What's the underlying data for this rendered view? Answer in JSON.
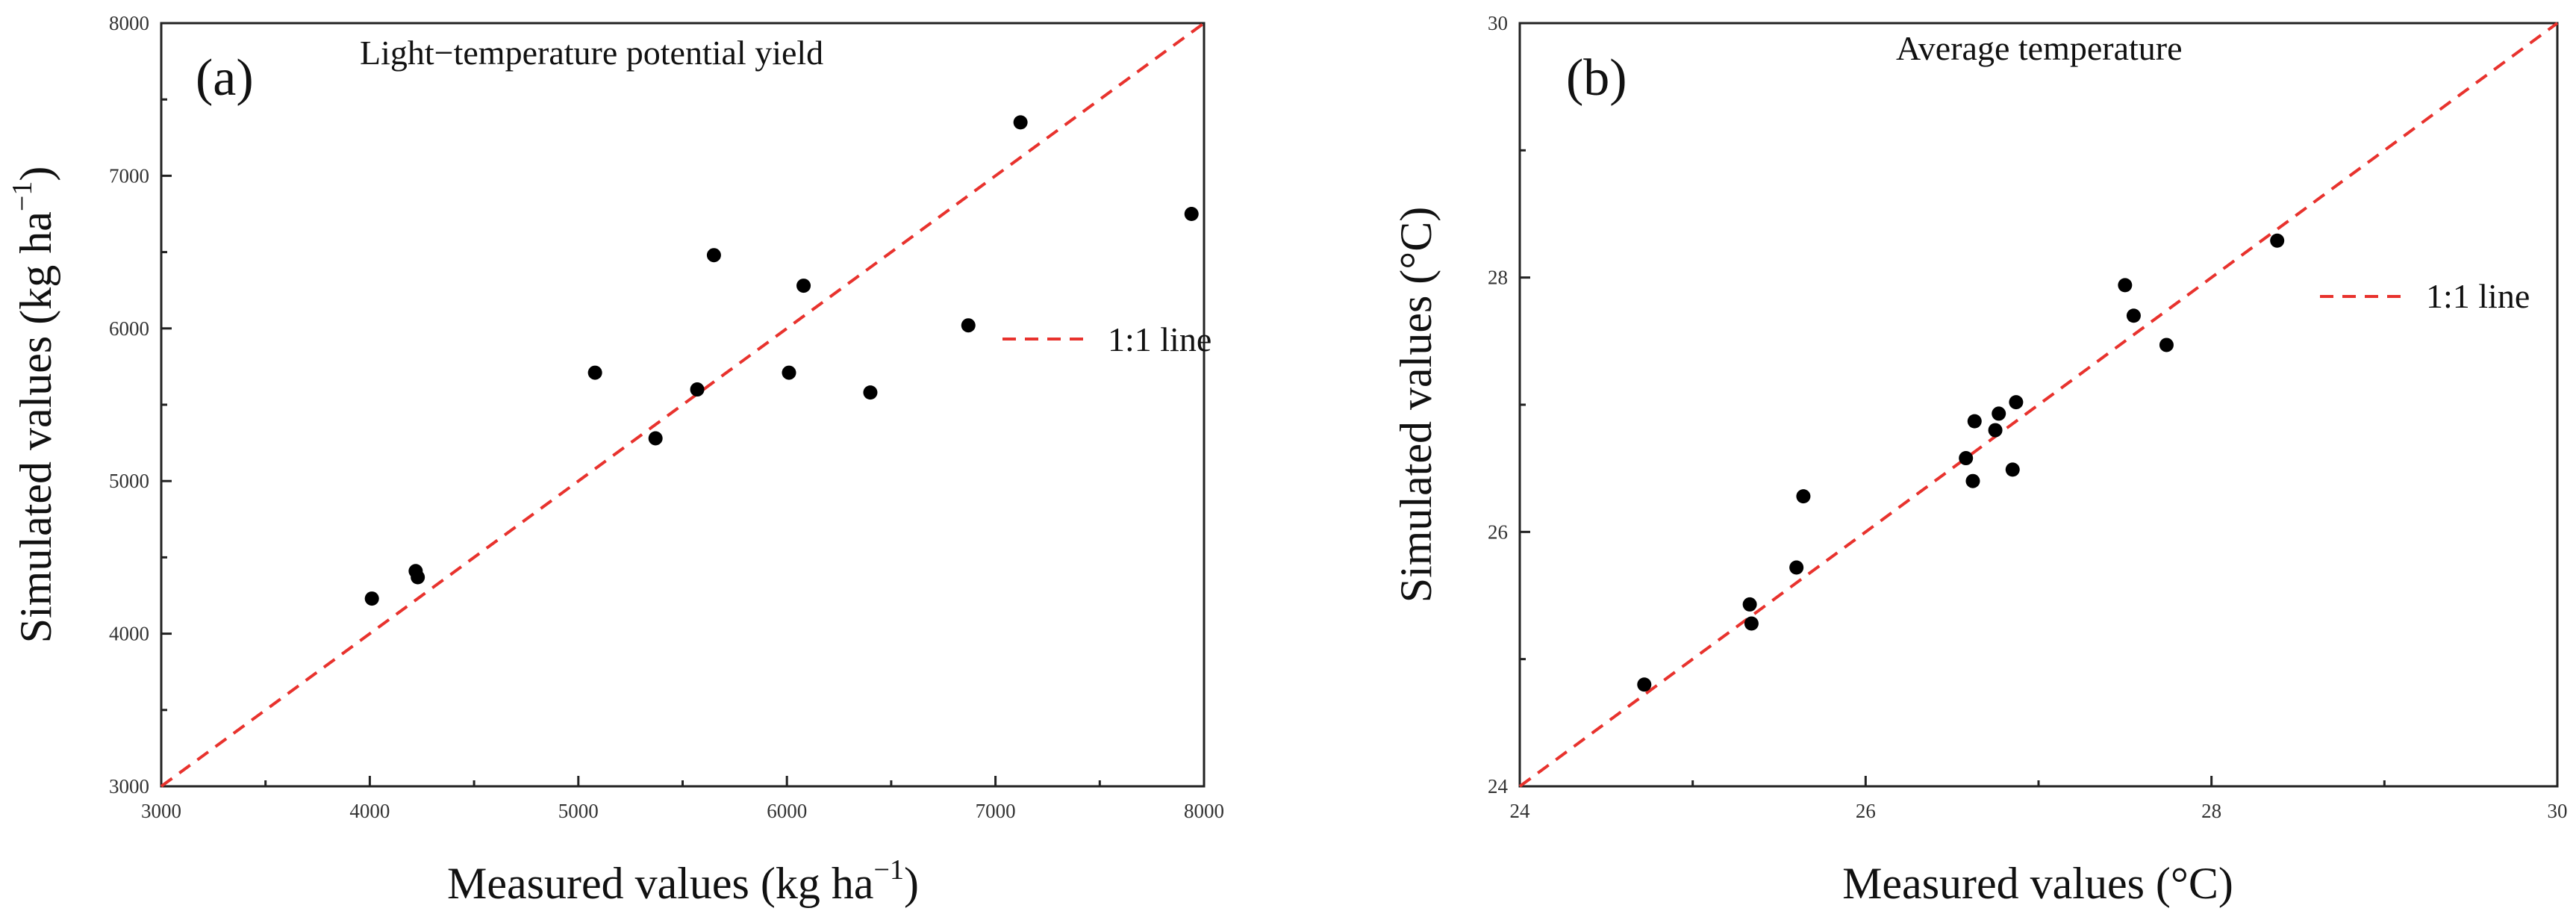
{
  "chart_data": [
    {
      "type": "scatter",
      "panel_label": "(a)",
      "title": "Light−temperature potential yield",
      "xlabel": "Measured values (kg ha",
      "xlabel_sup": "−1",
      "xlabel_close": ")",
      "ylabel": "Simulated values (kg ha",
      "ylabel_sup": "−1",
      "ylabel_close": ")",
      "xlim": [
        3000,
        8000
      ],
      "ylim": [
        3000,
        8000
      ],
      "x_major_ticks": [
        3000,
        4000,
        5000,
        6000,
        7000,
        8000
      ],
      "y_major_ticks": [
        3000,
        4000,
        5000,
        6000,
        7000,
        8000
      ],
      "x_tick_labels": [
        "3000",
        "4000",
        "5000",
        "6000",
        "7000",
        "8000"
      ],
      "y_tick_labels": [
        "3000",
        "4000",
        "5000",
        "6000",
        "7000",
        "8000"
      ],
      "minor_step": 500,
      "grid": false,
      "legend": {
        "label": "1:1 line",
        "placement": "right"
      },
      "reference_line": {
        "name": "1:1 line",
        "from": [
          3000,
          3000
        ],
        "to": [
          8000,
          8000
        ],
        "color": "#e8322d"
      },
      "series": [
        {
          "name": "Light−temperature potential yield",
          "color": "#000000",
          "x": [
            4010,
            4220,
            4230,
            5080,
            5370,
            5570,
            5650,
            6010,
            6080,
            6400,
            6870,
            7120,
            7940
          ],
          "y": [
            4230,
            4410,
            4370,
            5710,
            5280,
            5600,
            6480,
            5710,
            6280,
            5580,
            6020,
            7350,
            6750
          ]
        }
      ]
    },
    {
      "type": "scatter",
      "panel_label": "(b)",
      "title": "Average temperature",
      "xlabel": "Measured values (°C)",
      "ylabel": "Simulated values (°C)",
      "xlim": [
        24,
        30
      ],
      "ylim": [
        24,
        30
      ],
      "x_major_ticks": [
        24,
        26,
        28,
        30
      ],
      "y_major_ticks": [
        24,
        26,
        28,
        30
      ],
      "x_tick_labels": [
        "24",
        "26",
        "28",
        "30"
      ],
      "y_tick_labels": [
        "24",
        "26",
        "28",
        "30"
      ],
      "minor_step": 1,
      "grid": false,
      "legend": {
        "label": "1:1 line",
        "placement": "right"
      },
      "reference_line": {
        "name": "1:1 line",
        "from": [
          24,
          24
        ],
        "to": [
          30,
          30
        ],
        "color": "#e8322d"
      },
      "series": [
        {
          "name": "Average temperature",
          "color": "#000000",
          "x": [
            24.72,
            25.33,
            25.34,
            25.6,
            25.64,
            26.58,
            26.62,
            26.63,
            26.75,
            26.77,
            26.85,
            26.87,
            27.5,
            27.55,
            27.74,
            28.38
          ],
          "y": [
            24.8,
            25.43,
            25.28,
            25.72,
            26.28,
            26.58,
            26.4,
            26.87,
            26.8,
            26.93,
            26.49,
            27.02,
            27.94,
            27.7,
            27.47,
            28.29
          ]
        }
      ]
    }
  ]
}
